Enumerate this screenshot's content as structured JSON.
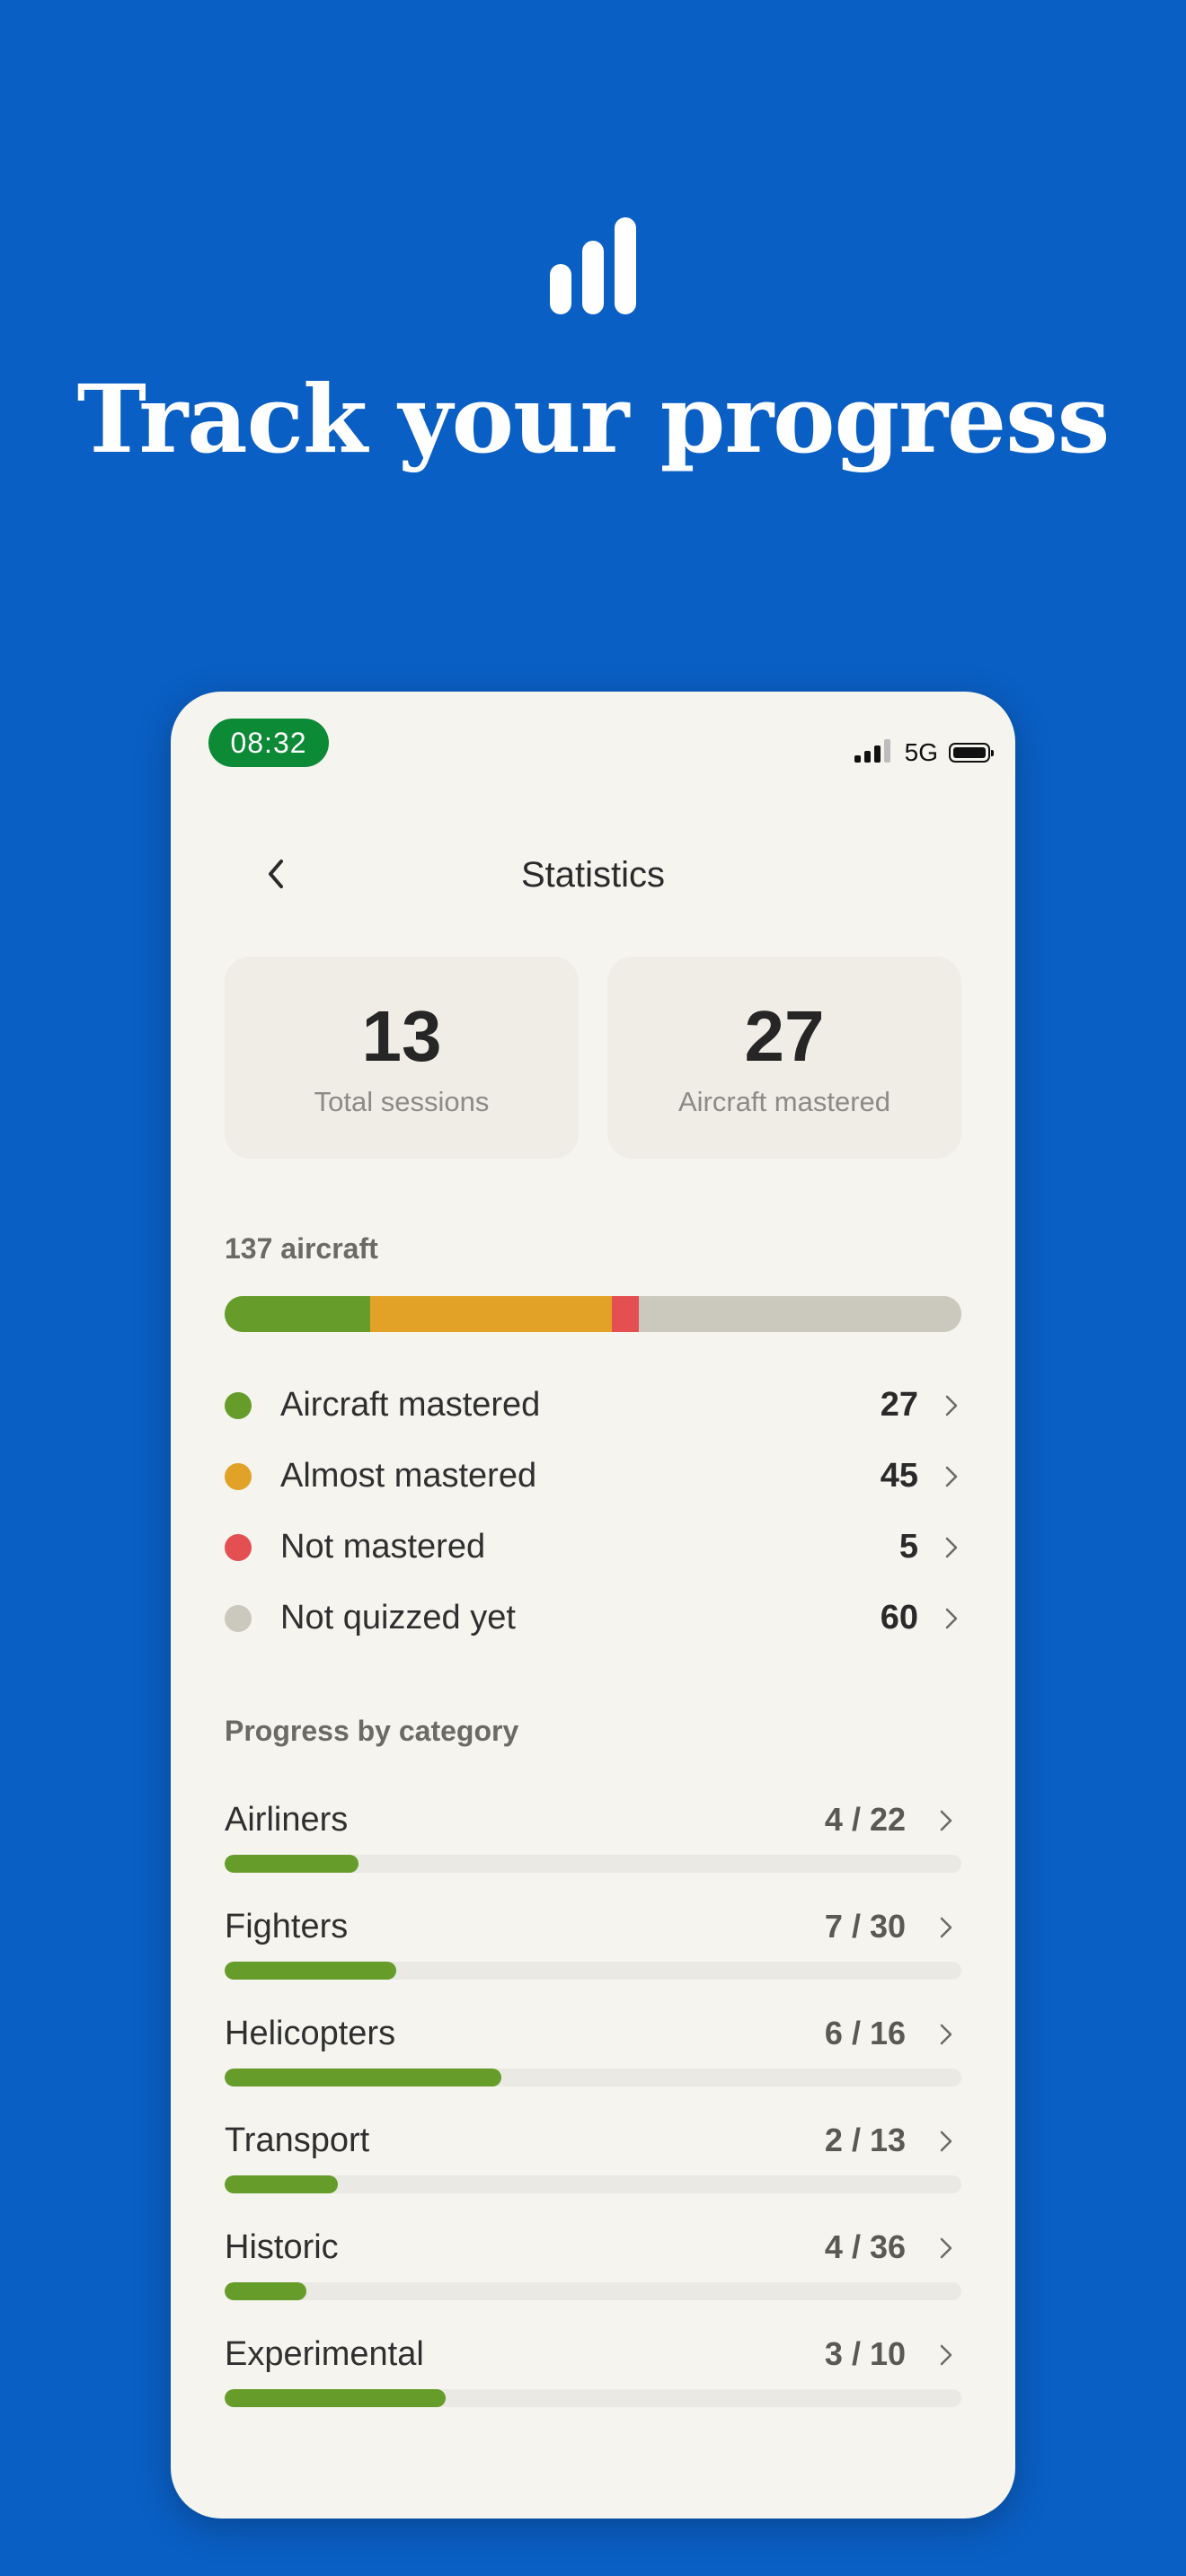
{
  "hero": {
    "icon": "bar-chart-icon",
    "title": "Track your progress"
  },
  "status_bar": {
    "time": "08:32",
    "network": "5G",
    "icons": [
      "signal-icon",
      "battery-icon"
    ]
  },
  "nav": {
    "back_icon": "chevron-left-icon",
    "title": "Statistics"
  },
  "stats": [
    {
      "value": "13",
      "label": "Total sessions"
    },
    {
      "value": "27",
      "label": "Aircraft mastered"
    }
  ],
  "overview": {
    "title": "137 aircraft",
    "total": 137,
    "segments": [
      {
        "label": "Aircraft mastered",
        "count": 27,
        "color": "#659c2a"
      },
      {
        "label": "Almost mastered",
        "count": 45,
        "color": "#e2a227"
      },
      {
        "label": "Not mastered",
        "count": 5,
        "color": "#e44f52"
      },
      {
        "label": "Not quizzed yet",
        "count": 60,
        "color": "#cbc8bd"
      }
    ]
  },
  "categories": {
    "title": "Progress by category",
    "items": [
      {
        "name": "Airliners",
        "count_text": "4 / 22",
        "mastered": 4,
        "total": 22
      },
      {
        "name": "Fighters",
        "count_text": "7 / 30",
        "mastered": 7,
        "total": 30
      },
      {
        "name": "Helicopters",
        "count_text": "6 / 16",
        "mastered": 6,
        "total": 16
      },
      {
        "name": "Transport",
        "count_text": "2 / 13",
        "mastered": 2,
        "total": 13
      },
      {
        "name": "Historic",
        "count_text": "4 / 36",
        "mastered": 4,
        "total": 36
      },
      {
        "name": "Experimental",
        "count_text": "3 / 10",
        "mastered": 3,
        "total": 10
      }
    ],
    "bar_color": "#659c2a"
  },
  "colors": {
    "background": "#0a5fc4",
    "card": "#f5f4ef",
    "time_pill": "#0c8a35"
  }
}
